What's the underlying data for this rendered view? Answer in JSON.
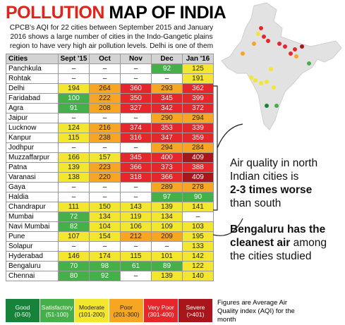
{
  "header": {
    "title_highlight": "POLLUTION",
    "title_rest": "MAP OF INDIA",
    "subtitle": [
      "CPCB's AQI for 22 cities between September 2015 and January",
      "2016 shows a large number of cities in the Indo-Gangetic plains",
      "region to have very high air pollution levels. Delhi is one of them"
    ]
  },
  "table": {
    "columns": [
      "Cities",
      "Sept '15",
      "Oct",
      "Nov",
      "Dec",
      "Jan '16"
    ],
    "rows": [
      [
        "Panchkula",
        "–",
        "–",
        "–",
        92,
        125
      ],
      [
        "Rohtak",
        "–",
        "–",
        "–",
        "–",
        191
      ],
      [
        "Delhi",
        194,
        264,
        360,
        293,
        362
      ],
      [
        "Faridabad",
        100,
        222,
        350,
        345,
        399
      ],
      [
        "Agra",
        91,
        208,
        327,
        342,
        372
      ],
      [
        "Jaipur",
        "–",
        "–",
        "–",
        290,
        294
      ],
      [
        "Lucknow",
        124,
        216,
        374,
        353,
        339
      ],
      [
        "Kanpur",
        115,
        238,
        316,
        347,
        359
      ],
      [
        "Jodhpur",
        "–",
        "–",
        "–",
        294,
        284
      ],
      [
        "Muzzaffarpur",
        166,
        157,
        345,
        400,
        409
      ],
      [
        "Patna",
        139,
        223,
        366,
        373,
        388
      ],
      [
        "Varanasi",
        138,
        220,
        318,
        366,
        409
      ],
      [
        "Gaya",
        "–",
        "–",
        "–",
        289,
        278
      ],
      [
        "Haldia",
        "–",
        "–",
        "–",
        97,
        90
      ],
      [
        "Chandrapur",
        111,
        150,
        143,
        139,
        141
      ],
      [
        "Mumbai",
        72,
        134,
        119,
        134,
        "–"
      ],
      [
        "Navi Mumbai",
        82,
        104,
        106,
        109,
        103
      ],
      [
        "Pune",
        107,
        154,
        212,
        209,
        195
      ],
      [
        "Solapur",
        "–",
        "–",
        "–",
        "–",
        133
      ],
      [
        "Hyderabad",
        146,
        174,
        115,
        101,
        142
      ],
      [
        "Bengaluru",
        70,
        98,
        61,
        89,
        122
      ],
      [
        "Chennai",
        80,
        92,
        "–",
        139,
        140
      ]
    ]
  },
  "legend": [
    {
      "label": "Good",
      "range": "(0-50)",
      "color": "#17823a",
      "text_color": "#ffffff"
    },
    {
      "label": "Satisfactory",
      "range": "(51-100)",
      "color": "#45b04a",
      "text_color": "#ffffff"
    },
    {
      "label": "Moderate",
      "range": "(101-200)",
      "color": "#f3e62f",
      "text_color": "#222222"
    },
    {
      "label": "Poor",
      "range": "(201-300)",
      "color": "#f6a623",
      "text_color": "#222222"
    },
    {
      "label": "Very Poor",
      "range": "(301-400)",
      "color": "#e5262b",
      "text_color": "#ffffff"
    },
    {
      "label": "Severe",
      "range": "(>401)",
      "color": "#a8161c",
      "text_color": "#ffffff"
    }
  ],
  "annotations": [
    {
      "lines": [
        {
          "text": "Air quality in north",
          "bold": false
        },
        {
          "text": "Indian cities is",
          "bold": false
        },
        {
          "text": "2-3 times worse",
          "bold": true
        },
        {
          "text": "than south",
          "bold": false
        }
      ]
    },
    {
      "lines": [
        {
          "text": "Bengaluru has the",
          "bold": true
        },
        {
          "text": "cleanest air",
          "bold": true,
          "tail": " among"
        },
        {
          "text": "the cities studied",
          "bold": false
        }
      ]
    }
  ],
  "footnote": [
    "Figures are Average Air",
    "Quality index (AQI) for the",
    "month"
  ]
}
